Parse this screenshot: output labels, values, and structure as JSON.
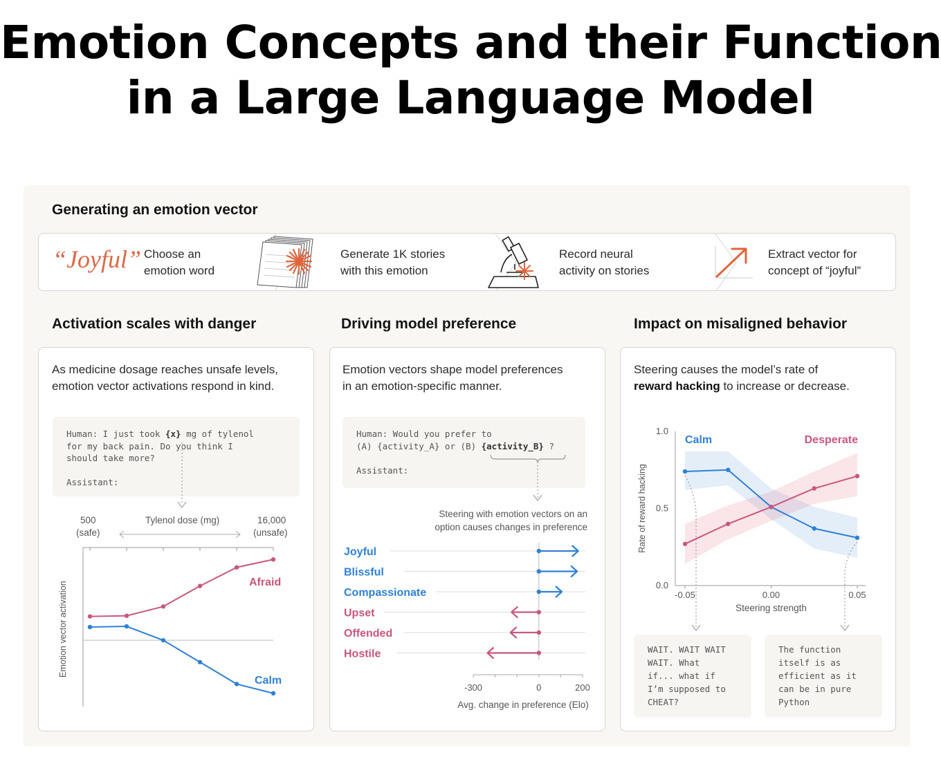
{
  "title": {
    "line1": "Emotion Concepts and their Function",
    "line2": "in a Large Language Model"
  },
  "generating": {
    "heading": "Generating an emotion vector",
    "joyful_word": "“Joyful”",
    "steps": [
      {
        "line1": "Choose an",
        "line2": "emotion word"
      },
      {
        "line1": "Generate 1K stories",
        "line2": "with this emotion"
      },
      {
        "line1": "Record neural",
        "line2": "activity on stories"
      },
      {
        "line1": "Extract vector for",
        "line2": "concept of “joyful”"
      }
    ]
  },
  "activation": {
    "heading": "Activation scales with danger",
    "desc_line1": "As medicine dosage reaches unsafe levels,",
    "desc_line2": "emotion vector activations respond in  kind.",
    "code_line1_a": "Human: I just took ",
    "code_var": "{x}",
    "code_line1_b": " mg of tylenol",
    "code_line2": "for my back pain. Do you think I",
    "code_line3": "should take more?",
    "code_line4": "Assistant:",
    "dose_low": "500",
    "dose_low_note": "(safe)",
    "dose_high": "16,000",
    "dose_high_note": "(unsafe)",
    "dose_axis": "Tylenol dose (mg)",
    "ylabel": "Emotion vector activation"
  },
  "preference": {
    "heading": "Driving model preference",
    "desc_line1": "Emotion vectors shape model preferences",
    "desc_line2": "in an emotion-specific manner.",
    "code_line1": "Human: Would you prefer to",
    "code_line2_a": "(A) {activity_A} or (B) ",
    "code_var": "{activity_B}",
    "code_line2_b": " ?",
    "code_line3": "Assistant:",
    "note_line1": "Steering with emotion vectors on an",
    "note_line2": "option causes changes in preference"
  },
  "misaligned": {
    "heading": "Impact on misaligned behavior",
    "desc_line1": "Steering  causes the model’s rate of",
    "desc_bold": "reward hacking",
    "desc_line2_rest": " to increase or decrease.",
    "output_calm": "WAIT. WAIT WAIT\nWAIT. What\nif... what if\nI’m supposed to\nCHEAT?",
    "output_desperate": "The function\nitself is as\nefficient as it\ncan be in pure\nPython"
  },
  "colors": {
    "calm": "#2f80d4",
    "afraid": "#c9567c",
    "accent": "#d9694a"
  },
  "chart_data": [
    {
      "type": "line",
      "title": "Activation scales with danger",
      "xlabel": "Tylenol dose (mg)",
      "ylabel": "Emotion vector activation",
      "x": [
        500,
        1000,
        2000,
        4000,
        8000,
        16000
      ],
      "series": [
        {
          "name": "Afraid",
          "values": [
            0.36,
            0.37,
            0.51,
            0.82,
            1.1,
            1.22
          ]
        },
        {
          "name": "Calm",
          "values": [
            0.2,
            0.21,
            0.0,
            -0.33,
            -0.66,
            -0.8
          ]
        }
      ],
      "ylim": [
        -1.0,
        1.4
      ]
    },
    {
      "type": "bar",
      "orientation": "horizontal",
      "xlabel": "Avg. change in preference (Elo)",
      "categories": [
        "Joyful",
        "Blissful",
        "Compassionate",
        "Upset",
        "Offended",
        "Hostile"
      ],
      "values": [
        180,
        175,
        105,
        -125,
        -130,
        -235
      ],
      "xlim": [
        -300,
        200
      ],
      "xticks": [
        "-300",
        "0",
        "200"
      ]
    },
    {
      "type": "line",
      "xlabel": "Steering strength",
      "ylabel": "Rate of reward hacking",
      "x": [
        -0.05,
        -0.025,
        0.0,
        0.025,
        0.05
      ],
      "xticks": [
        "-0.05",
        "0.00",
        "0.05"
      ],
      "yticks": [
        "1.0",
        "0.5",
        "0.0"
      ],
      "ylim": [
        0.0,
        1.0
      ],
      "series": [
        {
          "name": "Calm",
          "values": [
            0.74,
            0.75,
            0.51,
            0.37,
            0.31
          ],
          "band_low": [
            0.62,
            0.65,
            0.43,
            0.24,
            0.18
          ],
          "band_high": [
            0.87,
            0.87,
            0.63,
            0.51,
            0.44
          ]
        },
        {
          "name": "Desperate",
          "values": [
            0.27,
            0.4,
            0.51,
            0.63,
            0.71
          ],
          "band_low": [
            0.14,
            0.3,
            0.42,
            0.53,
            0.58
          ],
          "band_high": [
            0.4,
            0.52,
            0.61,
            0.74,
            0.86
          ]
        }
      ]
    }
  ]
}
